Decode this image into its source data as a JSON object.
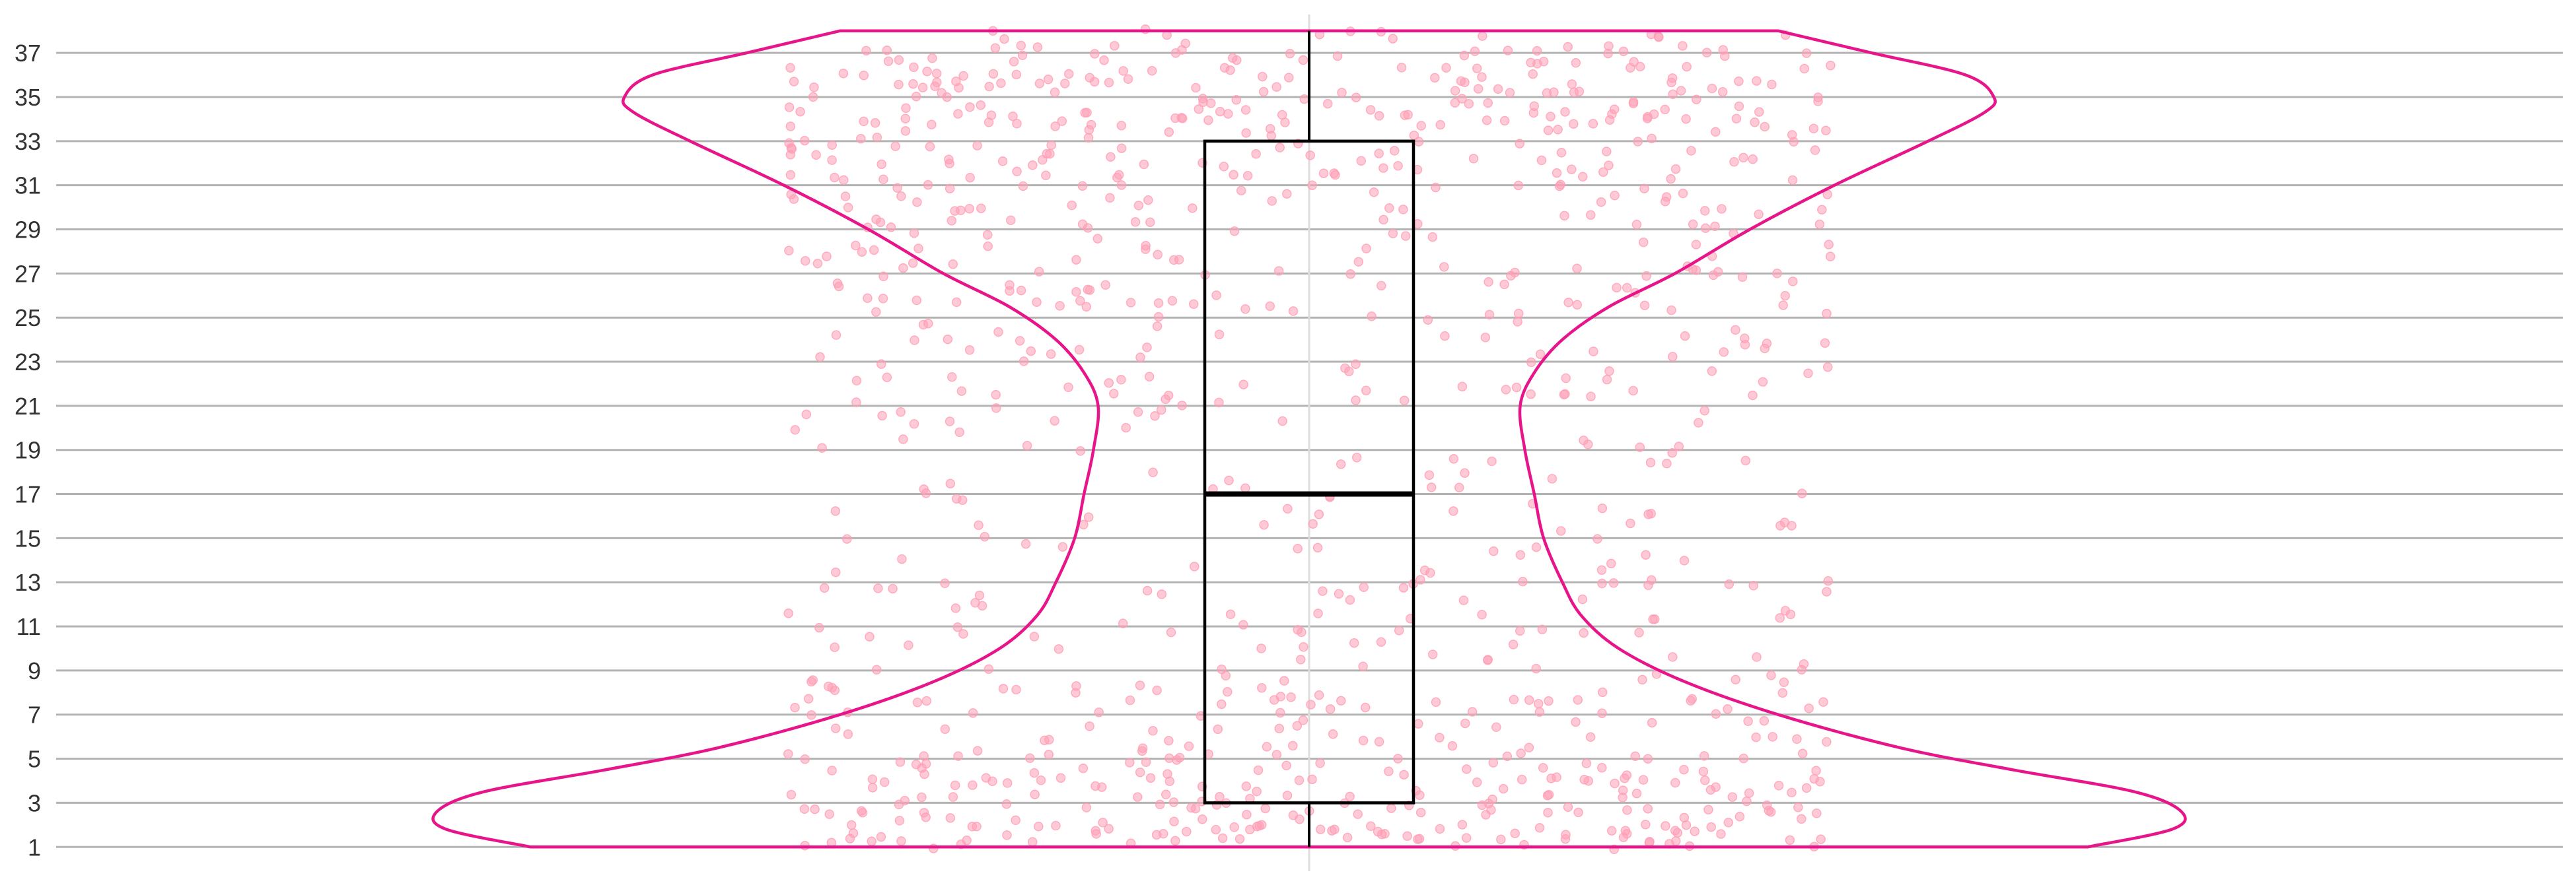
{
  "chart_data": {
    "type": "violin",
    "orientation": "vertical",
    "title": "",
    "xlabel": "",
    "ylabel": "",
    "ylim": [
      0.2,
      38.8
    ],
    "yticks": [
      1,
      3,
      5,
      7,
      9,
      11,
      13,
      15,
      17,
      19,
      21,
      23,
      25,
      27,
      29,
      31,
      33,
      35,
      37
    ],
    "grid": "horizontal",
    "data_range": [
      1,
      38
    ],
    "box": {
      "q1": 3,
      "median": 17,
      "q3": 33,
      "whisker_low": 1,
      "whisker_high": 38
    },
    "density_profile": [
      {
        "y": 1.0,
        "width": 0.83
      },
      {
        "y": 1.8,
        "width": 0.92
      },
      {
        "y": 2.6,
        "width": 0.93
      },
      {
        "y": 3.5,
        "width": 0.88
      },
      {
        "y": 4.5,
        "width": 0.75
      },
      {
        "y": 5.5,
        "width": 0.63
      },
      {
        "y": 7.0,
        "width": 0.5
      },
      {
        "y": 8.5,
        "width": 0.4
      },
      {
        "y": 10.0,
        "width": 0.33
      },
      {
        "y": 11.5,
        "width": 0.29
      },
      {
        "y": 13.0,
        "width": 0.27
      },
      {
        "y": 15.0,
        "width": 0.25
      },
      {
        "y": 17.0,
        "width": 0.24
      },
      {
        "y": 19.0,
        "width": 0.23
      },
      {
        "y": 21.0,
        "width": 0.225
      },
      {
        "y": 22.5,
        "width": 0.24
      },
      {
        "y": 24.0,
        "width": 0.27
      },
      {
        "y": 25.5,
        "width": 0.32
      },
      {
        "y": 27.0,
        "width": 0.39
      },
      {
        "y": 29.0,
        "width": 0.47
      },
      {
        "y": 31.0,
        "width": 0.56
      },
      {
        "y": 33.0,
        "width": 0.66
      },
      {
        "y": 34.3,
        "width": 0.72
      },
      {
        "y": 35.0,
        "width": 0.73
      },
      {
        "y": 36.0,
        "width": 0.7
      },
      {
        "y": 37.0,
        "width": 0.6
      },
      {
        "y": 38.0,
        "width": 0.5
      }
    ],
    "points_visible": true,
    "point_count_approx": 1000,
    "colors": {
      "violin_outline": "#e8158a",
      "points": "#ff9eb5",
      "box": "#000000",
      "grid": "#b3b3b3",
      "center_line": "#dddddd"
    }
  }
}
